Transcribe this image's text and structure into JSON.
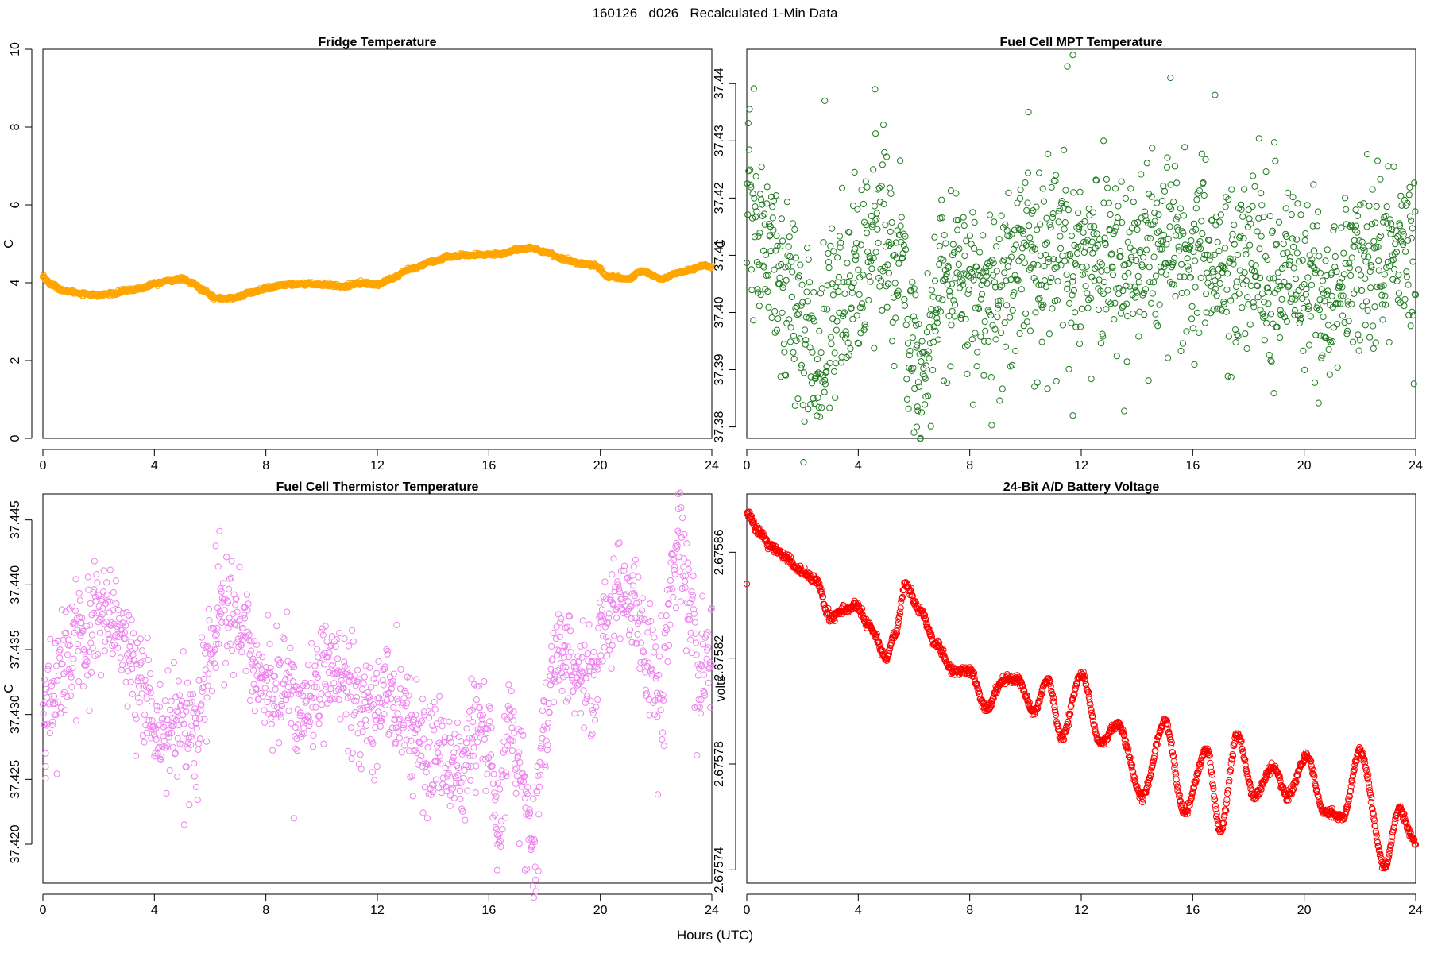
{
  "figure": {
    "title": "160126   d026   Recalculated 1-Min Data",
    "xlabel": "Hours (UTC)"
  },
  "chart_data": [
    {
      "type": "scatter",
      "title": "Fridge Temperature",
      "xlabel": "",
      "ylabel": "C",
      "xlim": [
        0,
        24
      ],
      "ylim": [
        0,
        10
      ],
      "xticks": [
        0,
        4,
        8,
        12,
        16,
        20,
        24
      ],
      "yticks": [
        0,
        2,
        4,
        6,
        8,
        10
      ],
      "ytick_labels": [
        "0",
        "2",
        "4",
        "6",
        "8",
        "10"
      ],
      "color": "#FFA500",
      "grid": false,
      "curve_anchors": [
        [
          0.0,
          4.15
        ],
        [
          0.3,
          3.95
        ],
        [
          0.8,
          3.78
        ],
        [
          1.5,
          3.72
        ],
        [
          2.0,
          3.68
        ],
        [
          2.5,
          3.72
        ],
        [
          3.0,
          3.8
        ],
        [
          3.5,
          3.85
        ],
        [
          4.0,
          3.97
        ],
        [
          4.5,
          4.05
        ],
        [
          5.0,
          4.1
        ],
        [
          5.3,
          4.0
        ],
        [
          5.8,
          3.8
        ],
        [
          6.2,
          3.6
        ],
        [
          6.8,
          3.6
        ],
        [
          7.5,
          3.75
        ],
        [
          8.0,
          3.85
        ],
        [
          8.7,
          3.95
        ],
        [
          9.5,
          3.97
        ],
        [
          10.2,
          3.95
        ],
        [
          10.8,
          3.9
        ],
        [
          11.4,
          4.0
        ],
        [
          12.0,
          3.95
        ],
        [
          12.5,
          4.1
        ],
        [
          13.2,
          4.35
        ],
        [
          14.0,
          4.55
        ],
        [
          14.6,
          4.68
        ],
        [
          15.2,
          4.7
        ],
        [
          15.8,
          4.72
        ],
        [
          16.5,
          4.75
        ],
        [
          17.0,
          4.85
        ],
        [
          17.4,
          4.9
        ],
        [
          18.0,
          4.8
        ],
        [
          18.7,
          4.6
        ],
        [
          19.3,
          4.5
        ],
        [
          19.8,
          4.45
        ],
        [
          20.3,
          4.15
        ],
        [
          21.0,
          4.1
        ],
        [
          21.5,
          4.3
        ],
        [
          22.2,
          4.1
        ],
        [
          22.8,
          4.25
        ],
        [
          23.3,
          4.35
        ],
        [
          23.7,
          4.45
        ],
        [
          24.0,
          4.4
        ]
      ],
      "noise_sd": 0.02,
      "outliers": [
        [
          0.02,
          4.2
        ]
      ]
    },
    {
      "type": "scatter",
      "title": "Fuel Cell MPT Temperature",
      "xlabel": "",
      "ylabel": "C",
      "xlim": [
        0,
        24
      ],
      "ylim": [
        37.378,
        37.446
      ],
      "xticks": [
        0,
        4,
        8,
        12,
        16,
        20,
        24
      ],
      "yticks": [
        37.38,
        37.39,
        37.4,
        37.41,
        37.42,
        37.43,
        37.44
      ],
      "ytick_labels": [
        "37.38",
        "37.39",
        "37.40",
        "37.41",
        "37.42",
        "37.43",
        "37.44"
      ],
      "color": "#1E7A1E",
      "grid": false,
      "curve_anchors": [
        [
          0.0,
          37.418
        ],
        [
          0.8,
          37.41
        ],
        [
          1.4,
          37.404
        ],
        [
          2.0,
          37.396
        ],
        [
          2.6,
          37.392
        ],
        [
          3.2,
          37.402
        ],
        [
          3.8,
          37.406
        ],
        [
          4.3,
          37.41
        ],
        [
          4.8,
          37.414
        ],
        [
          5.5,
          37.408
        ],
        [
          6.0,
          37.392
        ],
        [
          6.4,
          37.39
        ],
        [
          7.0,
          37.405
        ],
        [
          7.6,
          37.408
        ],
        [
          8.3,
          37.404
        ],
        [
          9.0,
          37.403
        ],
        [
          9.8,
          37.41
        ],
        [
          10.5,
          37.407
        ],
        [
          11.2,
          37.409
        ],
        [
          12.0,
          37.41
        ],
        [
          12.8,
          37.41
        ],
        [
          13.6,
          37.406
        ],
        [
          14.5,
          37.41
        ],
        [
          15.2,
          37.412
        ],
        [
          16.0,
          37.408
        ],
        [
          16.8,
          37.41
        ],
        [
          17.5,
          37.405
        ],
        [
          18.2,
          37.41
        ],
        [
          18.8,
          37.407
        ],
        [
          19.6,
          37.405
        ],
        [
          20.3,
          37.405
        ],
        [
          20.9,
          37.4
        ],
        [
          21.5,
          37.405
        ],
        [
          22.2,
          37.408
        ],
        [
          23.0,
          37.41
        ],
        [
          23.6,
          37.412
        ],
        [
          24.0,
          37.408
        ]
      ],
      "noise_sd": 0.008,
      "outliers": [
        [
          11.7,
          37.445
        ],
        [
          11.5,
          37.443
        ],
        [
          15.2,
          37.441
        ],
        [
          4.6,
          37.439
        ],
        [
          2.8,
          37.437
        ],
        [
          16.8,
          37.438
        ],
        [
          6.1,
          37.38
        ],
        [
          6.0,
          37.379
        ],
        [
          11.7,
          37.382
        ],
        [
          12.8,
          37.43
        ]
      ]
    },
    {
      "type": "scatter",
      "title": "Fuel Cell Thermistor Temperature",
      "xlabel": "",
      "ylabel": "C",
      "xlim": [
        0,
        24
      ],
      "ylim": [
        37.417,
        37.447
      ],
      "xticks": [
        0,
        4,
        8,
        12,
        16,
        20,
        24
      ],
      "yticks": [
        37.42,
        37.425,
        37.43,
        37.435,
        37.44,
        37.445
      ],
      "ytick_labels": [
        "37.420",
        "37.425",
        "37.430",
        "37.435",
        "37.440",
        "37.445"
      ],
      "color": "#EE82EE",
      "grid": false,
      "curve_anchors": [
        [
          0.0,
          37.429
        ],
        [
          0.3,
          37.431
        ],
        [
          0.6,
          37.434
        ],
        [
          1.0,
          37.435
        ],
        [
          1.5,
          37.436
        ],
        [
          2.0,
          37.437
        ],
        [
          2.5,
          37.437
        ],
        [
          3.0,
          37.435
        ],
        [
          3.5,
          37.432
        ],
        [
          4.0,
          37.429
        ],
        [
          4.5,
          37.429
        ],
        [
          5.0,
          37.429
        ],
        [
          5.5,
          37.428
        ],
        [
          6.0,
          37.434
        ],
        [
          6.4,
          37.438
        ],
        [
          7.0,
          37.437
        ],
        [
          7.6,
          37.434
        ],
        [
          8.2,
          37.432
        ],
        [
          8.8,
          37.432
        ],
        [
          9.3,
          37.43
        ],
        [
          9.8,
          37.432
        ],
        [
          10.3,
          37.434
        ],
        [
          10.8,
          37.432
        ],
        [
          11.3,
          37.431
        ],
        [
          11.8,
          37.43
        ],
        [
          12.4,
          37.432
        ],
        [
          13.0,
          37.43
        ],
        [
          13.5,
          37.428
        ],
        [
          14.0,
          37.428
        ],
        [
          14.5,
          37.426
        ],
        [
          15.0,
          37.425
        ],
        [
          15.5,
          37.429
        ],
        [
          16.0,
          37.428
        ],
        [
          16.3,
          37.422
        ],
        [
          16.8,
          37.428
        ],
        [
          17.2,
          37.424
        ],
        [
          17.6,
          37.42
        ],
        [
          18.0,
          37.428
        ],
        [
          18.5,
          37.435
        ],
        [
          19.2,
          37.434
        ],
        [
          19.8,
          37.433
        ],
        [
          20.3,
          37.437
        ],
        [
          20.8,
          37.44
        ],
        [
          21.3,
          37.439
        ],
        [
          21.8,
          37.434
        ],
        [
          22.2,
          37.43
        ],
        [
          22.5,
          37.44
        ],
        [
          22.9,
          37.443
        ],
        [
          23.2,
          37.438
        ],
        [
          23.6,
          37.432
        ],
        [
          24.0,
          37.435
        ]
      ],
      "noise_sd": 0.0022,
      "outliers": [
        [
          0.1,
          37.426
        ],
        [
          0.1,
          37.427
        ],
        [
          9.0,
          37.422
        ],
        [
          16.3,
          37.418
        ],
        [
          17.3,
          37.418
        ],
        [
          22.8,
          37.447
        ],
        [
          6.2,
          37.443
        ]
      ]
    },
    {
      "type": "scatter",
      "title": "24-Bit A/D Battery Voltage",
      "xlabel": "",
      "ylabel": "volts",
      "xlim": [
        0,
        24
      ],
      "ylim": [
        2.675735,
        2.675882
      ],
      "xticks": [
        0,
        4,
        8,
        12,
        16,
        20,
        24
      ],
      "yticks": [
        2.67574,
        2.67578,
        2.67582,
        2.67586
      ],
      "ytick_labels": [
        "2.67574",
        "2.67578",
        "2.67582",
        "2.67586"
      ],
      "color": "#FF0000",
      "grid": false,
      "curve_anchors": [
        [
          0.0,
          2.675875
        ],
        [
          0.4,
          2.675868
        ],
        [
          0.9,
          2.675862
        ],
        [
          1.4,
          2.675858
        ],
        [
          1.9,
          2.675853
        ],
        [
          2.5,
          2.675849
        ],
        [
          3.0,
          2.675835
        ],
        [
          3.4,
          2.675838
        ],
        [
          3.9,
          2.67584
        ],
        [
          4.4,
          2.675832
        ],
        [
          5.0,
          2.67582
        ],
        [
          5.3,
          2.675828
        ],
        [
          5.7,
          2.675848
        ],
        [
          6.2,
          2.675838
        ],
        [
          6.8,
          2.675825
        ],
        [
          7.4,
          2.675815
        ],
        [
          8.0,
          2.675815
        ],
        [
          8.6,
          2.675801
        ],
        [
          9.2,
          2.675812
        ],
        [
          9.7,
          2.675812
        ],
        [
          10.3,
          2.6758
        ],
        [
          10.8,
          2.675812
        ],
        [
          11.3,
          2.67579
        ],
        [
          12.0,
          2.675814
        ],
        [
          12.7,
          2.675788
        ],
        [
          13.3,
          2.675795
        ],
        [
          14.2,
          2.675768
        ],
        [
          15.0,
          2.675796
        ],
        [
          15.7,
          2.675762
        ],
        [
          16.5,
          2.675785
        ],
        [
          17.0,
          2.675755
        ],
        [
          17.6,
          2.675791
        ],
        [
          18.2,
          2.675768
        ],
        [
          18.9,
          2.675779
        ],
        [
          19.4,
          2.675768
        ],
        [
          20.1,
          2.675783
        ],
        [
          20.7,
          2.675762
        ],
        [
          21.4,
          2.67576
        ],
        [
          22.0,
          2.675785
        ],
        [
          22.9,
          2.675741
        ],
        [
          23.4,
          2.675763
        ],
        [
          24.0,
          2.67575
        ]
      ],
      "noise_sd": 8e-07,
      "outliers": [
        [
          0.0,
          2.675848
        ]
      ]
    }
  ]
}
